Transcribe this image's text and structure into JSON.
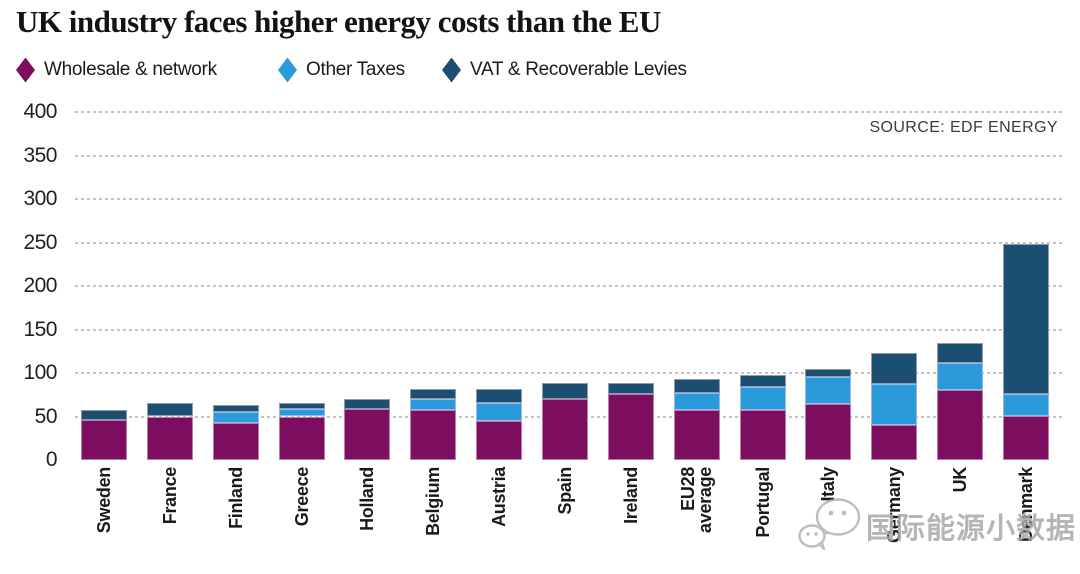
{
  "page": {
    "title": "UK industry faces higher energy costs than the EU",
    "source_label": "SOURCE: EDF ENERGY",
    "watermark_text": "国际能源小数据"
  },
  "colors": {
    "wholesale_network": "#7c0d5f",
    "other_taxes": "#2b9ada",
    "vat_recoverable_levies": "#1c4e71",
    "gridline": "#b0b0b0",
    "axis_text": "#1f1f1f",
    "title_text": "#131313",
    "source_text": "#3c3c3c",
    "watermark_gray": "#a9a9a9"
  },
  "chart_data": {
    "type": "bar",
    "stacked": true,
    "bar_orientation": "vertical",
    "title": "UK industry faces higher energy costs than the EU",
    "source": "SOURCE: EDF ENERGY",
    "categories": [
      "Sweden",
      "France",
      "Finland",
      "Greece",
      "Holland",
      "Belgium",
      "Austria",
      "Spain",
      "Ireland",
      "EU28 average",
      "Portugal",
      "Italy",
      "Germany",
      "UK",
      "Denmark"
    ],
    "series": [
      {
        "name": "Wholesale & network",
        "color": "#7c0d5f",
        "values": [
          46,
          50,
          43,
          50,
          59,
          58,
          45,
          70,
          76,
          58,
          58,
          64,
          40,
          81,
          51
        ]
      },
      {
        "name": "Other Taxes",
        "color": "#2b9ada",
        "values": [
          0,
          0,
          12,
          9,
          0,
          12,
          21,
          0,
          0,
          19,
          26,
          31,
          47,
          31,
          25
        ]
      },
      {
        "name": "VAT & Recoverable Levies",
        "color": "#1c4e71",
        "values": [
          12,
          15,
          8,
          6,
          11,
          12,
          16,
          18,
          12,
          16,
          14,
          10,
          36,
          23,
          172
        ]
      }
    ],
    "approx_totals": [
      58,
      65,
      63,
      65,
      70,
      82,
      82,
      88,
      88,
      93,
      98,
      105,
      123,
      135,
      248
    ],
    "ylim": [
      0,
      400
    ],
    "yticks": [
      0,
      50,
      100,
      150,
      200,
      250,
      300,
      350,
      400
    ],
    "grid": "dashed-horizontal",
    "legend_position": "top-left"
  }
}
